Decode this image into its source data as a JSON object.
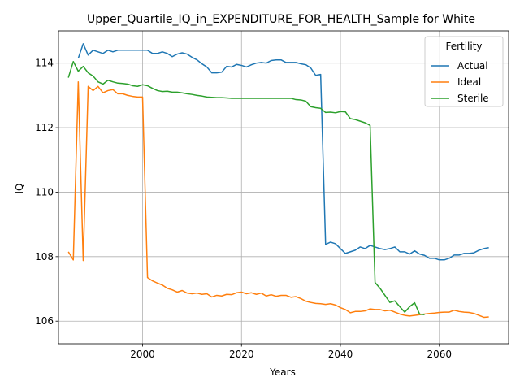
{
  "chart_data": {
    "type": "line",
    "title": "Upper_Quartile_IQ_in_EXPENDITURE_FOR_HEALTH_Sample for White",
    "xlabel": "Years",
    "ylabel": "IQ",
    "xlim": [
      1983,
      2074
    ],
    "ylim": [
      105.3,
      115.0
    ],
    "xticks": [
      2000,
      2020,
      2040,
      2060
    ],
    "yticks": [
      106,
      108,
      110,
      112,
      114
    ],
    "grid": true,
    "legend": {
      "title": "Fertility",
      "placement": "top-right"
    },
    "series": [
      {
        "name": "Actual",
        "color": "#1f77b4",
        "x": [
          1987,
          1988,
          1989,
          1990,
          1991,
          1992,
          1993,
          1994,
          1995,
          1996,
          1997,
          1998,
          1999,
          2000,
          2001,
          2002,
          2003,
          2004,
          2005,
          2006,
          2007,
          2008,
          2009,
          2010,
          2011,
          2012,
          2013,
          2014,
          2015,
          2016,
          2017,
          2018,
          2019,
          2020,
          2021,
          2022,
          2023,
          2024,
          2025,
          2026,
          2027,
          2028,
          2029,
          2030,
          2031,
          2032,
          2033,
          2034,
          2035,
          2036,
          2037,
          2038,
          2039,
          2040,
          2041,
          2042,
          2043,
          2044,
          2045,
          2046,
          2047,
          2048,
          2049,
          2050,
          2051,
          2052,
          2053,
          2054,
          2055,
          2056,
          2057,
          2058,
          2059,
          2060,
          2061,
          2062,
          2063,
          2064,
          2065,
          2066,
          2067,
          2068,
          2069,
          2070
        ],
        "y": [
          114.15,
          114.6,
          114.25,
          114.4,
          114.35,
          114.3,
          114.4,
          114.35,
          114.4,
          114.4,
          114.4,
          114.4,
          114.4,
          114.4,
          114.4,
          114.3,
          114.3,
          114.35,
          114.3,
          114.2,
          114.28,
          114.32,
          114.28,
          114.18,
          114.1,
          113.98,
          113.88,
          113.7,
          113.7,
          113.72,
          113.9,
          113.88,
          113.96,
          113.93,
          113.88,
          113.95,
          114.0,
          114.02,
          114.0,
          114.08,
          114.1,
          114.1,
          114.02,
          114.02,
          114.02,
          113.98,
          113.95,
          113.85,
          113.62,
          113.65,
          108.38,
          108.45,
          108.4,
          108.25,
          108.1,
          108.15,
          108.2,
          108.3,
          108.25,
          108.35,
          108.3,
          108.25,
          108.22,
          108.25,
          108.3,
          108.15,
          108.15,
          108.08,
          108.18,
          108.08,
          108.04,
          107.95,
          107.95,
          107.9,
          107.9,
          107.95,
          108.05,
          108.05,
          108.1,
          108.1,
          108.12,
          108.2,
          108.25,
          108.28
        ]
      },
      {
        "name": "Ideal",
        "color": "#ff7f0e",
        "x": [
          1985,
          1986,
          1987,
          1988,
          1989,
          1990,
          1991,
          1992,
          1993,
          1994,
          1995,
          1996,
          1997,
          1998,
          1999,
          2000,
          2001,
          2002,
          2003,
          2004,
          2005,
          2006,
          2007,
          2008,
          2009,
          2010,
          2011,
          2012,
          2013,
          2014,
          2015,
          2016,
          2017,
          2018,
          2019,
          2020,
          2021,
          2022,
          2023,
          2024,
          2025,
          2026,
          2027,
          2028,
          2029,
          2030,
          2031,
          2032,
          2033,
          2034,
          2035,
          2036,
          2037,
          2038,
          2039,
          2040,
          2041,
          2042,
          2043,
          2044,
          2045,
          2046,
          2047,
          2048,
          2049,
          2050,
          2051,
          2052,
          2053,
          2054,
          2055,
          2056,
          2057,
          2058,
          2059,
          2060,
          2061,
          2062,
          2063,
          2064,
          2065,
          2066,
          2067,
          2068,
          2069,
          2070
        ],
        "y": [
          108.15,
          107.9,
          113.42,
          107.88,
          113.28,
          113.15,
          113.28,
          113.08,
          113.15,
          113.18,
          113.05,
          113.05,
          113.0,
          112.97,
          112.95,
          112.95,
          107.35,
          107.25,
          107.18,
          107.12,
          107.02,
          106.97,
          106.9,
          106.95,
          106.87,
          106.85,
          106.87,
          106.83,
          106.85,
          106.75,
          106.8,
          106.78,
          106.83,
          106.82,
          106.88,
          106.9,
          106.85,
          106.88,
          106.83,
          106.87,
          106.78,
          106.82,
          106.77,
          106.8,
          106.8,
          106.74,
          106.76,
          106.7,
          106.62,
          106.58,
          106.55,
          106.54,
          106.52,
          106.54,
          106.5,
          106.42,
          106.36,
          106.26,
          106.3,
          106.3,
          106.32,
          106.38,
          106.36,
          106.36,
          106.32,
          106.34,
          106.28,
          106.22,
          106.18,
          106.16,
          106.18,
          106.2,
          106.22,
          106.24,
          106.25,
          106.27,
          106.28,
          106.28,
          106.34,
          106.3,
          106.28,
          106.27,
          106.24,
          106.18,
          106.12,
          106.13
        ]
      },
      {
        "name": "Sterile",
        "color": "#2ca02c",
        "x": [
          1985,
          1986,
          1987,
          1988,
          1989,
          1990,
          1991,
          1992,
          1993,
          1994,
          1995,
          1996,
          1997,
          1998,
          1999,
          2000,
          2001,
          2002,
          2003,
          2004,
          2005,
          2006,
          2007,
          2008,
          2009,
          2010,
          2011,
          2012,
          2013,
          2014,
          2015,
          2016,
          2017,
          2018,
          2019,
          2020,
          2021,
          2022,
          2023,
          2024,
          2025,
          2026,
          2027,
          2028,
          2029,
          2030,
          2031,
          2032,
          2033,
          2034,
          2035,
          2036,
          2037,
          2038,
          2039,
          2040,
          2041,
          2042,
          2043,
          2044,
          2045,
          2046,
          2047,
          2048,
          2049,
          2050,
          2051,
          2052,
          2053,
          2054,
          2055,
          2056,
          2057
        ],
        "y": [
          113.55,
          114.05,
          113.75,
          113.9,
          113.7,
          113.6,
          113.42,
          113.35,
          113.47,
          113.42,
          113.38,
          113.37,
          113.35,
          113.3,
          113.28,
          113.33,
          113.3,
          113.22,
          113.15,
          113.12,
          113.13,
          113.1,
          113.1,
          113.08,
          113.05,
          113.03,
          113.0,
          112.98,
          112.95,
          112.94,
          112.93,
          112.93,
          112.92,
          112.91,
          112.91,
          112.91,
          112.91,
          112.91,
          112.91,
          112.91,
          112.91,
          112.91,
          112.91,
          112.91,
          112.91,
          112.91,
          112.87,
          112.86,
          112.82,
          112.65,
          112.62,
          112.6,
          112.47,
          112.48,
          112.46,
          112.5,
          112.49,
          112.28,
          112.25,
          112.2,
          112.15,
          112.07,
          107.2,
          107.02,
          106.8,
          106.58,
          106.63,
          106.45,
          106.28,
          106.45,
          106.57,
          106.22,
          106.2
        ]
      }
    ]
  }
}
